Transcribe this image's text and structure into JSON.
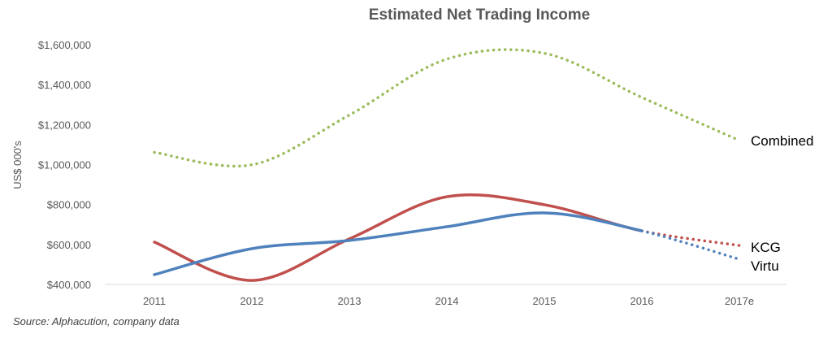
{
  "chart_data": {
    "type": "line",
    "title": "Estimated Net Trading Income",
    "ylabel": "US$ 000's",
    "xlabel": "",
    "categories": [
      "2011",
      "2012",
      "2013",
      "2014",
      "2015",
      "2016",
      "2017e"
    ],
    "ylim": [
      400000,
      1600000
    ],
    "yticks": [
      400000,
      600000,
      800000,
      1000000,
      1200000,
      1400000,
      1600000
    ],
    "ytick_labels": [
      "$400,000",
      "$600,000",
      "$800,000",
      "$1,000,000",
      "$1,200,000",
      "$1,400,000",
      "$1,600,000"
    ],
    "grid": false,
    "legend": "direct labels at line ends (right)",
    "series": [
      {
        "name": "Combined",
        "color": "#9BBB59",
        "style": "dotted",
        "values": [
          1061000,
          999000,
          1248000,
          1528000,
          1557000,
          1336000,
          1121000
        ]
      },
      {
        "name": "KCG",
        "color": "#C0504D",
        "style": "solid, dotted for 2017e",
        "values": [
          612000,
          420000,
          628000,
          839000,
          799000,
          668000,
          595000
        ]
      },
      {
        "name": "Virtu",
        "color": "#4F81BD",
        "style": "solid, dotted for 2017e",
        "values": [
          449000,
          579000,
          620000,
          689000,
          758000,
          668000,
          526000
        ]
      }
    ],
    "source": "Source: Alphacution, company data"
  }
}
